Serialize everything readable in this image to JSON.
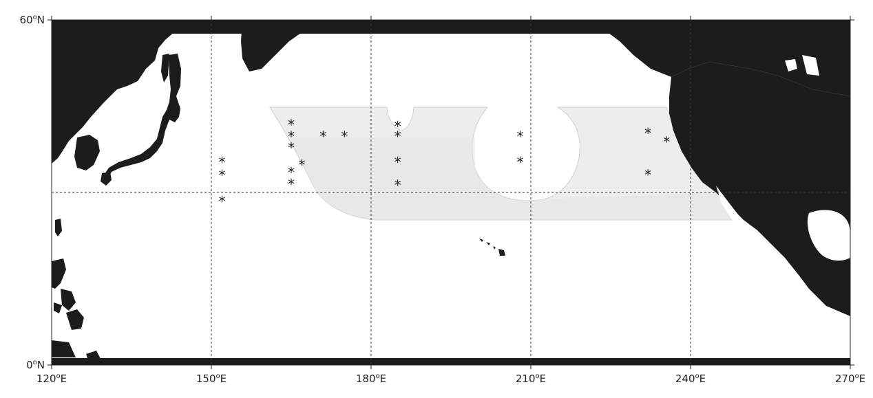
{
  "map": {
    "lon_range": [
      120,
      270
    ],
    "lat_range": [
      0,
      60
    ],
    "gridlines_lon": [
      150,
      180,
      210,
      240
    ],
    "gridlines_lat": [
      30
    ],
    "land_color": "#1c1c1c",
    "study_region_color": "#ededed",
    "x_tick_labels": [
      {
        "lon": 120,
        "value": "120",
        "unit": "E"
      },
      {
        "lon": 150,
        "value": "150",
        "unit": "E"
      },
      {
        "lon": 180,
        "value": "180",
        "unit": "E"
      },
      {
        "lon": 210,
        "value": "210",
        "unit": "E"
      },
      {
        "lon": 240,
        "value": "240",
        "unit": "E"
      },
      {
        "lon": 270,
        "value": "270",
        "unit": "E"
      }
    ],
    "y_tick_labels": [
      {
        "lat": 60,
        "value": "60",
        "unit": "N"
      },
      {
        "lat": 0,
        "value": "0",
        "unit": "N"
      }
    ],
    "degree_symbol": "o",
    "station_marker": "*",
    "stations": [
      {
        "lon": 152,
        "lat": 35.5
      },
      {
        "lon": 152,
        "lat": 33.2
      },
      {
        "lon": 152,
        "lat": 28.7
      },
      {
        "lon": 165,
        "lat": 42.0
      },
      {
        "lon": 165,
        "lat": 40.0
      },
      {
        "lon": 165,
        "lat": 38.0
      },
      {
        "lon": 165,
        "lat": 33.7
      },
      {
        "lon": 165,
        "lat": 31.7
      },
      {
        "lon": 167,
        "lat": 35.0
      },
      {
        "lon": 171,
        "lat": 40.0
      },
      {
        "lon": 175,
        "lat": 40.0
      },
      {
        "lon": 185,
        "lat": 41.7
      },
      {
        "lon": 185,
        "lat": 40.0
      },
      {
        "lon": 185,
        "lat": 35.5
      },
      {
        "lon": 185,
        "lat": 31.5
      },
      {
        "lon": 208,
        "lat": 40.0
      },
      {
        "lon": 208,
        "lat": 35.5
      },
      {
        "lon": 232,
        "lat": 40.5
      },
      {
        "lon": 232,
        "lat": 33.3
      },
      {
        "lon": 235.5,
        "lat": 39.0
      }
    ]
  }
}
